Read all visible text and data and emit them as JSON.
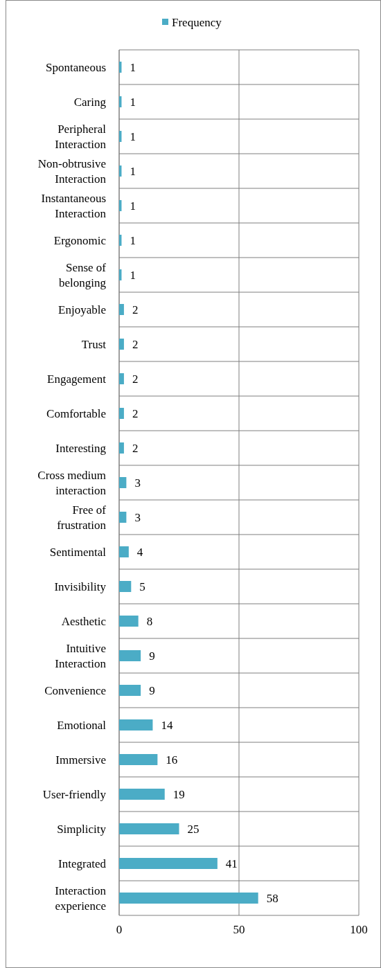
{
  "chart_data": {
    "type": "bar",
    "orientation": "horizontal",
    "categories": [
      "Spontaneous",
      "Caring",
      "Peripheral Interaction",
      "Non-obtrusive Interaction",
      "Instantaneous Interaction",
      "Ergonomic",
      "Sense of belonging",
      "Enjoyable",
      "Trust",
      "Engagement",
      "Comfortable",
      "Interesting",
      "Cross medium interaction",
      "Free of frustration",
      "Sentimental",
      "Invisibility",
      "Aesthetic",
      "Intuitive Interaction",
      "Convenience",
      "Emotional",
      "Immersive",
      "User-friendly",
      "Simplicity",
      "Integrated",
      "Interaction experience"
    ],
    "series": [
      {
        "name": "Frequency",
        "color": "#4bacc6",
        "values": [
          1,
          1,
          1,
          1,
          1,
          1,
          1,
          2,
          2,
          2,
          2,
          2,
          3,
          3,
          4,
          5,
          8,
          9,
          9,
          14,
          16,
          19,
          25,
          41,
          58
        ]
      }
    ],
    "xlim": [
      0,
      100
    ],
    "xticks": [
      0,
      50,
      100
    ],
    "grid": true,
    "legend": "top",
    "data_labels": true
  }
}
